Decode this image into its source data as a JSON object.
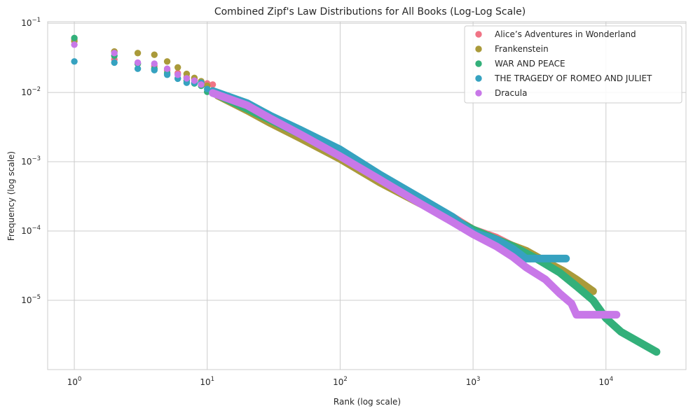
{
  "chart_data": {
    "type": "scatter",
    "title": "Combined Zipf's Law Distributions for All Books (Log-Log Scale)",
    "xlabel": "Rank (log scale)",
    "ylabel": "Frequency (log scale)",
    "xscale": "log",
    "yscale": "log",
    "xlim": [
      0.63,
      40000
    ],
    "ylim": [
      1e-06,
      0.105
    ],
    "x_ticks": [
      {
        "base": "10",
        "exp": "0",
        "value": 1
      },
      {
        "base": "10",
        "exp": "1",
        "value": 10
      },
      {
        "base": "10",
        "exp": "2",
        "value": 100
      },
      {
        "base": "10",
        "exp": "3",
        "value": 1000
      },
      {
        "base": "10",
        "exp": "4",
        "value": 10000
      }
    ],
    "y_ticks": [
      {
        "base": "10",
        "exp": "−5",
        "value": 1e-05
      },
      {
        "base": "10",
        "exp": "−4",
        "value": 0.0001
      },
      {
        "base": "10",
        "exp": "−3",
        "value": 0.001
      },
      {
        "base": "10",
        "exp": "−2",
        "value": 0.01
      },
      {
        "base": "10",
        "exp": "−1",
        "value": 0.1
      }
    ],
    "grid": true,
    "legend_position": "top-right",
    "series": [
      {
        "name": "Alice’s Adventures in Wonderland",
        "color": "#f07385",
        "points": [
          [
            1,
            0.058
          ],
          [
            2,
            0.03
          ],
          [
            3,
            0.026
          ],
          [
            4,
            0.024
          ],
          [
            5,
            0.021
          ],
          [
            6,
            0.019
          ],
          [
            7,
            0.0165
          ],
          [
            8,
            0.0155
          ],
          [
            9,
            0.014
          ],
          [
            10,
            0.0135
          ],
          [
            11,
            0.013
          ]
        ],
        "curve": [
          [
            12,
            0.0095
          ],
          [
            20,
            0.0064
          ],
          [
            30,
            0.0042
          ],
          [
            50,
            0.0027
          ],
          [
            100,
            0.0013
          ],
          [
            200,
            0.0006
          ],
          [
            400,
            0.00027
          ],
          [
            700,
            0.00016
          ],
          [
            1000,
            0.000105
          ],
          [
            1500,
            8e-05
          ],
          [
            2200,
            5.5e-05
          ],
          [
            2700,
            4e-05
          ]
        ]
      },
      {
        "name": "Frankenstein",
        "color": "#aa9a3a",
        "points": [
          [
            1,
            0.055
          ],
          [
            2,
            0.039
          ],
          [
            3,
            0.037
          ],
          [
            4,
            0.035
          ],
          [
            5,
            0.028
          ],
          [
            6,
            0.023
          ],
          [
            7,
            0.0185
          ],
          [
            8,
            0.0162
          ],
          [
            9,
            0.0145
          ],
          [
            10,
            0.0125
          ]
        ],
        "curve": [
          [
            12,
            0.009
          ],
          [
            20,
            0.0055
          ],
          [
            30,
            0.0036
          ],
          [
            50,
            0.0022
          ],
          [
            100,
            0.0011
          ],
          [
            200,
            0.0005
          ],
          [
            400,
            0.00025
          ],
          [
            700,
            0.00015
          ],
          [
            1000,
            0.000105
          ],
          [
            1500,
            7.5e-05
          ],
          [
            2500,
            5.2e-05
          ],
          [
            3200,
            4e-05
          ],
          [
            4700,
            2.7e-05
          ],
          [
            6000,
            2e-05
          ],
          [
            8000,
            1.35e-05
          ]
        ]
      },
      {
        "name": "WAR AND PEACE",
        "color": "#33b07a",
        "points": [
          [
            1,
            0.061
          ],
          [
            2,
            0.034
          ],
          [
            3,
            0.026
          ],
          [
            4,
            0.022
          ],
          [
            5,
            0.019
          ],
          [
            6,
            0.016
          ],
          [
            7,
            0.0148
          ],
          [
            8,
            0.0135
          ],
          [
            9,
            0.0125
          ],
          [
            10,
            0.0102
          ]
        ],
        "curve": [
          [
            11,
            0.01
          ],
          [
            20,
            0.0058
          ],
          [
            30,
            0.004
          ],
          [
            50,
            0.0025
          ],
          [
            100,
            0.0012
          ],
          [
            200,
            0.00057
          ],
          [
            400,
            0.00027
          ],
          [
            700,
            0.00015
          ],
          [
            1000,
            0.000105
          ],
          [
            2000,
            6e-05
          ],
          [
            3000,
            4e-05
          ],
          [
            4500,
            2.5e-05
          ],
          [
            6000,
            1.6e-05
          ],
          [
            8000,
            1e-05
          ],
          [
            10000,
            5.5e-06
          ],
          [
            13000,
            3.5e-06
          ],
          [
            24000,
            1.8e-06
          ]
        ]
      },
      {
        "name": "THE TRAGEDY OF ROMEO AND JULIET",
        "color": "#36a2c0",
        "points": [
          [
            1,
            0.028
          ],
          [
            2,
            0.027
          ],
          [
            3,
            0.022
          ],
          [
            4,
            0.021
          ],
          [
            5,
            0.018
          ],
          [
            6,
            0.0158
          ],
          [
            7,
            0.0138
          ],
          [
            8,
            0.0138
          ],
          [
            9,
            0.0138
          ],
          [
            10,
            0.0112
          ]
        ],
        "curve": [
          [
            11,
            0.0105
          ],
          [
            20,
            0.007
          ],
          [
            30,
            0.0046
          ],
          [
            50,
            0.0029
          ],
          [
            100,
            0.0015
          ],
          [
            200,
            0.00065
          ],
          [
            400,
            0.0003
          ],
          [
            700,
            0.00016
          ],
          [
            1000,
            9.5e-05
          ],
          [
            1500,
            7.5e-05
          ],
          [
            2000,
            5.5e-05
          ],
          [
            2500,
            4e-05
          ],
          [
            5000,
            4e-05
          ]
        ]
      },
      {
        "name": "Dracula",
        "color": "#c878e8",
        "points": [
          [
            1,
            0.049
          ],
          [
            2,
            0.037
          ],
          [
            3,
            0.027
          ],
          [
            4,
            0.026
          ],
          [
            5,
            0.022
          ],
          [
            6,
            0.018
          ],
          [
            7,
            0.016
          ],
          [
            8,
            0.0148
          ],
          [
            9,
            0.013
          ]
        ],
        "curve": [
          [
            11,
            0.0098
          ],
          [
            20,
            0.0065
          ],
          [
            30,
            0.0042
          ],
          [
            50,
            0.0025
          ],
          [
            100,
            0.0012
          ],
          [
            200,
            0.00055
          ],
          [
            400,
            0.00025
          ],
          [
            700,
            0.000135
          ],
          [
            1000,
            9e-05
          ],
          [
            1500,
            6e-05
          ],
          [
            2000,
            4.2e-05
          ],
          [
            2500,
            3e-05
          ],
          [
            3500,
            2e-05
          ],
          [
            4500,
            1.25e-05
          ],
          [
            5500,
            9e-06
          ],
          [
            6000,
            6.2e-06
          ],
          [
            12000,
            6.2e-06
          ]
        ]
      }
    ]
  }
}
